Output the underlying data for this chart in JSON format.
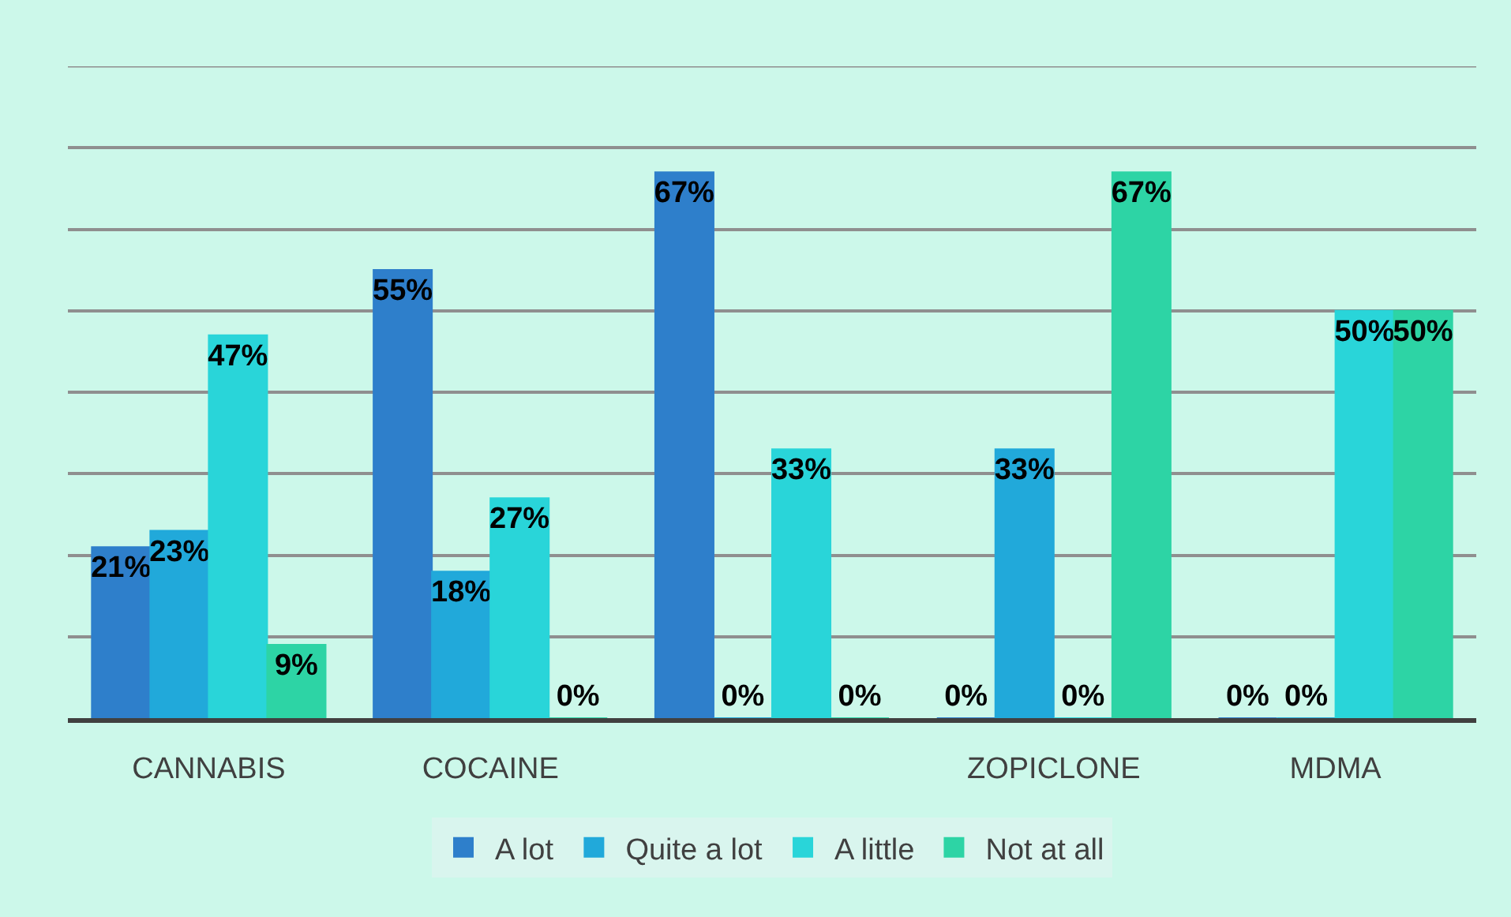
{
  "chart_data": {
    "type": "bar",
    "categories": [
      "CANNABIS",
      "COCAINE",
      null,
      "ZOPICLONE",
      "MDMA"
    ],
    "series": [
      {
        "name": "A lot",
        "color": "#2e7fcb",
        "values": [
          21,
          55,
          67,
          0,
          0
        ],
        "value_labels": [
          "21%",
          "55%",
          "67%",
          "0%",
          "0%"
        ]
      },
      {
        "name": "Quite a lot",
        "color": "#21a9da",
        "values": [
          23,
          18,
          0,
          33,
          0
        ],
        "value_labels": [
          "23%",
          "18%",
          "0%",
          "33%",
          "0%"
        ]
      },
      {
        "name": "A little",
        "color": "#29d5d9",
        "values": [
          47,
          27,
          33,
          0,
          50
        ],
        "value_labels": [
          "47%",
          "27%",
          "33%",
          "0%",
          "50%"
        ]
      },
      {
        "name": "Not at all",
        "color": "#2dd4a5",
        "values": [
          9,
          0,
          0,
          67,
          50
        ],
        "value_labels": [
          "9%",
          "0%",
          "0%",
          "67%",
          "50%"
        ]
      }
    ],
    "ylim": [
      0,
      80
    ],
    "yticks": [
      {
        "value": 0,
        "label": null
      },
      {
        "value": 10,
        "label": null
      },
      {
        "value": 20,
        "label": null
      },
      {
        "value": 30,
        "label": null
      },
      {
        "value": 40,
        "label": null
      },
      {
        "value": 50,
        "label": null
      },
      {
        "value": 60,
        "label": null
      },
      {
        "value": 70,
        "label": null
      },
      {
        "value": 80,
        "label": null
      }
    ],
    "grid": "y",
    "legend": "bottom",
    "tick_labels": "x"
  }
}
